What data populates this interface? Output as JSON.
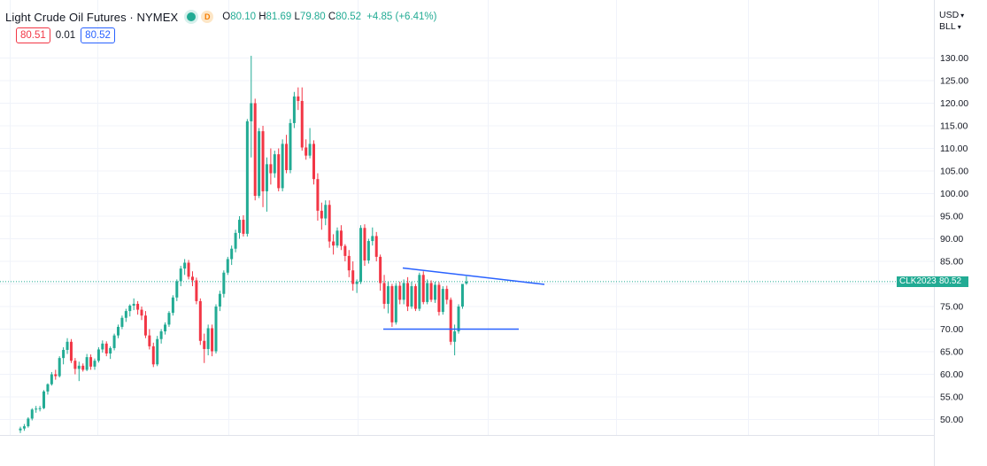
{
  "header": {
    "title": "Light Crude Oil Futures · NYMEX",
    "interval_badge": "D",
    "ohlc": [
      {
        "key": "O",
        "value": "80.10"
      },
      {
        "key": "H",
        "value": "81.69"
      },
      {
        "key": "L",
        "value": "79.80"
      },
      {
        "key": "C",
        "value": "80.52"
      }
    ],
    "change": "+4.85 (+6.41%)"
  },
  "quotes": {
    "sell": "80.51",
    "spread": "0.01",
    "buy": "80.52"
  },
  "axis_controls": {
    "currency": "USD",
    "unit": "BLL"
  },
  "last_price": {
    "symbol": "CLK2023",
    "value": "80.52"
  },
  "colors": {
    "up": "#22ab94",
    "down": "#f23645",
    "trendline": "#2962ff",
    "price_line": "#22ab94"
  },
  "chart_data": {
    "type": "candlestick",
    "y_ticks": [
      "130.00",
      "125.00",
      "120.00",
      "115.00",
      "110.00",
      "105.00",
      "100.00",
      "95.00",
      "90.00",
      "85.00",
      "80.00",
      "75.00",
      "70.00",
      "65.00",
      "60.00",
      "55.00",
      "50.00"
    ],
    "y_range": [
      46.5,
      135.0
    ],
    "last_value": 80.52,
    "candles": [
      [
        47.6,
        48.4,
        47.0,
        48.0
      ],
      [
        48.0,
        49.0,
        47.5,
        48.5
      ],
      [
        48.5,
        50.5,
        48.2,
        50.2
      ],
      [
        50.2,
        52.5,
        49.8,
        52.2
      ],
      [
        52.2,
        53.0,
        51.5,
        52.4
      ],
      [
        52.4,
        53.0,
        51.8,
        52.5
      ],
      [
        52.5,
        56.5,
        52.3,
        56.2
      ],
      [
        56.2,
        58.0,
        55.5,
        57.8
      ],
      [
        57.8,
        60.5,
        57.5,
        60.0
      ],
      [
        60.0,
        61.0,
        58.8,
        59.6
      ],
      [
        59.6,
        64.0,
        59.3,
        63.6
      ],
      [
        63.6,
        66.0,
        62.2,
        65.4
      ],
      [
        65.4,
        68.0,
        64.5,
        67.2
      ],
      [
        67.2,
        67.8,
        62.5,
        63.0
      ],
      [
        63.0,
        63.6,
        60.0,
        61.2
      ],
      [
        61.2,
        62.8,
        58.5,
        61.9
      ],
      [
        61.9,
        62.4,
        60.6,
        61.0
      ],
      [
        61.0,
        64.5,
        60.7,
        63.8
      ],
      [
        63.8,
        64.4,
        61.0,
        61.7
      ],
      [
        61.7,
        63.5,
        61.0,
        63.0
      ],
      [
        63.0,
        66.0,
        62.6,
        65.5
      ],
      [
        65.5,
        67.5,
        64.8,
        66.8
      ],
      [
        66.8,
        67.3,
        64.0,
        64.6
      ],
      [
        64.6,
        66.2,
        63.4,
        65.8
      ],
      [
        65.8,
        69.0,
        65.3,
        68.6
      ],
      [
        68.6,
        71.0,
        68.0,
        70.5
      ],
      [
        70.5,
        73.0,
        70.0,
        72.5
      ],
      [
        72.5,
        74.5,
        71.6,
        74.0
      ],
      [
        74.0,
        75.5,
        72.8,
        75.2
      ],
      [
        75.2,
        76.8,
        74.2,
        75.6
      ],
      [
        75.6,
        76.2,
        73.2,
        74.3
      ],
      [
        74.3,
        75.0,
        72.0,
        73.0
      ],
      [
        73.0,
        74.0,
        68.0,
        68.6
      ],
      [
        68.6,
        70.0,
        65.5,
        66.2
      ],
      [
        66.2,
        67.0,
        61.6,
        62.2
      ],
      [
        62.2,
        68.5,
        61.8,
        67.8
      ],
      [
        67.8,
        70.0,
        66.8,
        69.5
      ],
      [
        69.5,
        71.5,
        68.8,
        71.0
      ],
      [
        71.0,
        74.0,
        70.5,
        73.6
      ],
      [
        73.6,
        77.5,
        73.0,
        77.0
      ],
      [
        77.0,
        81.0,
        76.2,
        80.6
      ],
      [
        80.6,
        84.0,
        79.5,
        83.4
      ],
      [
        83.4,
        85.5,
        82.0,
        84.7
      ],
      [
        84.7,
        85.3,
        81.0,
        81.6
      ],
      [
        81.6,
        82.8,
        79.5,
        80.8
      ],
      [
        80.8,
        81.4,
        75.5,
        76.2
      ],
      [
        76.2,
        76.8,
        66.5,
        67.4
      ],
      [
        67.4,
        69.0,
        62.5,
        65.6
      ],
      [
        65.6,
        71.0,
        64.2,
        70.2
      ],
      [
        70.2,
        71.0,
        64.0,
        65.1
      ],
      [
        65.1,
        75.5,
        64.6,
        75.0
      ],
      [
        75.0,
        78.5,
        74.0,
        77.8
      ],
      [
        77.8,
        83.0,
        77.0,
        82.5
      ],
      [
        82.5,
        86.0,
        82.0,
        85.5
      ],
      [
        85.5,
        88.5,
        84.2,
        87.8
      ],
      [
        87.8,
        92.0,
        87.0,
        91.3
      ],
      [
        91.3,
        95.0,
        90.0,
        94.2
      ],
      [
        94.2,
        95.2,
        90.5,
        91.1
      ],
      [
        91.1,
        116.5,
        90.5,
        116.0
      ],
      [
        116.0,
        130.5,
        108.0,
        120.0
      ],
      [
        120.0,
        121.0,
        98.5,
        99.5
      ],
      [
        99.5,
        114.5,
        99.0,
        113.8
      ],
      [
        113.8,
        115.0,
        97.0,
        100.5
      ],
      [
        100.5,
        108.0,
        96.0,
        106.5
      ],
      [
        106.5,
        110.0,
        102.0,
        104.5
      ],
      [
        104.5,
        109.5,
        103.5,
        108.7
      ],
      [
        108.7,
        110.0,
        100.5,
        101.2
      ],
      [
        101.2,
        112.0,
        100.5,
        111.0
      ],
      [
        111.0,
        113.0,
        104.5,
        105.2
      ],
      [
        105.2,
        116.5,
        104.5,
        115.6
      ],
      [
        115.6,
        122.5,
        114.5,
        121.5
      ],
      [
        121.5,
        123.5,
        118.5,
        120.5
      ],
      [
        120.5,
        123.5,
        109.5,
        110.2
      ],
      [
        110.2,
        112.0,
        107.5,
        108.4
      ],
      [
        108.4,
        114.5,
        107.8,
        111.0
      ],
      [
        111.0,
        111.8,
        102.0,
        103.2
      ],
      [
        103.2,
        104.5,
        94.0,
        96.2
      ],
      [
        96.2,
        98.0,
        92.0,
        94.5
      ],
      [
        94.5,
        98.5,
        93.0,
        97.5
      ],
      [
        97.5,
        98.5,
        88.0,
        89.4
      ],
      [
        89.4,
        91.0,
        86.5,
        88.5
      ],
      [
        88.5,
        92.5,
        88.0,
        91.8
      ],
      [
        91.8,
        93.0,
        87.5,
        88.4
      ],
      [
        88.4,
        88.8,
        85.0,
        86.2
      ],
      [
        86.2,
        87.5,
        81.5,
        83.0
      ],
      [
        83.0,
        85.0,
        78.5,
        80.0
      ],
      [
        80.0,
        81.0,
        78.0,
        80.5
      ],
      [
        80.5,
        93.0,
        80.0,
        92.4
      ],
      [
        92.4,
        93.2,
        84.0,
        85.2
      ],
      [
        85.2,
        90.0,
        84.5,
        89.5
      ],
      [
        89.5,
        92.5,
        88.5,
        90.6
      ],
      [
        90.6,
        91.5,
        85.0,
        86.0
      ],
      [
        86.0,
        86.5,
        78.5,
        80.2
      ],
      [
        80.2,
        82.0,
        74.5,
        75.6
      ],
      [
        75.6,
        80.5,
        73.5,
        79.5
      ],
      [
        79.5,
        80.0,
        70.5,
        71.5
      ],
      [
        71.5,
        80.2,
        71.0,
        79.6
      ],
      [
        79.6,
        80.5,
        75.5,
        76.5
      ],
      [
        76.5,
        81.0,
        75.5,
        80.2
      ],
      [
        80.2,
        81.5,
        74.0,
        75.0
      ],
      [
        75.0,
        80.5,
        74.5,
        79.5
      ],
      [
        79.5,
        80.0,
        74.0,
        74.5
      ],
      [
        74.5,
        82.5,
        74.0,
        82.0
      ],
      [
        82.0,
        82.8,
        75.5,
        76.0
      ],
      [
        76.0,
        81.0,
        75.5,
        80.2
      ],
      [
        80.2,
        80.8,
        76.0,
        76.5
      ],
      [
        76.5,
        80.5,
        75.8,
        79.8
      ],
      [
        79.8,
        80.4,
        73.0,
        73.8
      ],
      [
        73.8,
        79.5,
        73.2,
        78.9
      ],
      [
        78.9,
        79.6,
        75.5,
        76.5
      ],
      [
        76.5,
        77.0,
        66.5,
        67.2
      ],
      [
        67.2,
        71.0,
        64.2,
        69.5
      ],
      [
        69.5,
        75.5,
        69.0,
        75.0
      ],
      [
        75.0,
        80.0,
        74.5,
        80.0
      ],
      [
        80.1,
        81.7,
        79.8,
        80.52
      ]
    ],
    "trendlines": [
      {
        "type": "descending-resistance",
        "from": [
          84.0,
          "pre-top"
        ],
        "to": [
          79.9,
          "projection"
        ]
      },
      {
        "type": "horizontal-support",
        "value": 70.0
      }
    ]
  }
}
